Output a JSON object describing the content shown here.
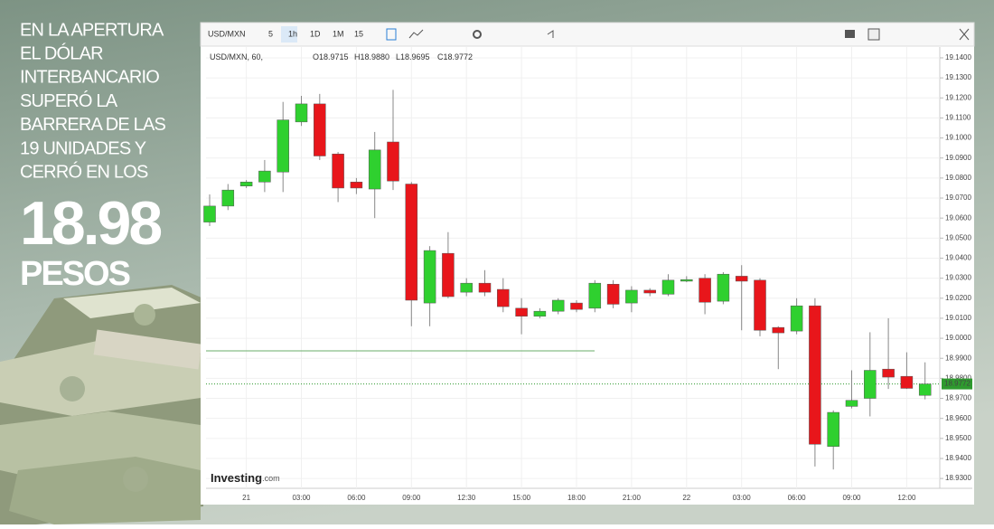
{
  "headline": {
    "lines": [
      "EN LA APERTURA",
      "EL DÓLAR",
      "INTERBANCARIO",
      "SUPERÓ LA",
      "BARRERA DE LAS",
      "19 UNIDADES Y",
      "CERRÓ EN LOS"
    ],
    "big_number": "18.98",
    "unit": "PESOS"
  },
  "toolbar": {
    "symbol": "USD/MXN",
    "intervals": [
      "5",
      "1h",
      "1D",
      "1M",
      "15"
    ]
  },
  "header": {
    "symbol": "USD/MXN, 60,",
    "ohlc": [
      {
        "label": "O",
        "value": "18.9715"
      },
      {
        "label": "H",
        "value": "18.9880"
      },
      {
        "label": "L",
        "value": "18.9695"
      },
      {
        "label": "C",
        "value": "18.9772"
      }
    ]
  },
  "watermark": {
    "brand": "Investing",
    "suffix": ".com"
  },
  "chart_data": {
    "type": "candlestick",
    "categories": [
      null,
      null,
      "21",
      null,
      null,
      "03:00",
      null,
      null,
      "06:00",
      null,
      null,
      "09:00",
      null,
      null,
      "12:30",
      null,
      null,
      "15:00",
      null,
      null,
      "18:00",
      null,
      null,
      "21:00",
      null,
      null,
      "22",
      null,
      null,
      "03:00",
      null,
      null,
      "06:00",
      null,
      null,
      "09:00",
      null,
      null,
      "12:00",
      null
    ],
    "open": [
      19.058,
      19.066,
      19.076,
      19.078,
      19.083,
      19.108,
      19.117,
      19.092,
      19.078,
      19.0745,
      19.098,
      19.077,
      19.0176,
      19.0424,
      19.023,
      19.0275,
      19.0244,
      19.015,
      19.011,
      19.0135,
      19.0176,
      19.015,
      19.027,
      19.0176,
      19.024,
      19.022,
      19.0285,
      19.03,
      19.0185,
      19.031,
      19.029,
      19.0054,
      19.0036,
      19.0162,
      18.946,
      18.966,
      18.97,
      18.9846,
      18.981,
      18.9715
    ],
    "high": [
      19.0718,
      19.077,
      19.079,
      19.089,
      19.118,
      19.121,
      19.122,
      19.093,
      19.08,
      19.103,
      19.124,
      19.078,
      19.046,
      19.053,
      19.03,
      19.034,
      19.03,
      19.02,
      19.015,
      19.02,
      19.019,
      19.029,
      19.029,
      19.026,
      19.025,
      19.032,
      19.031,
      19.032,
      19.033,
      19.0365,
      19.03,
      19.006,
      19.02,
      19.02,
      18.964,
      18.984,
      19.003,
      19.01,
      18.993,
      18.988
    ],
    "low": [
      19.056,
      19.064,
      19.075,
      19.073,
      19.073,
      19.106,
      19.089,
      19.068,
      19.072,
      19.06,
      19.074,
      19.006,
      19.006,
      19.02,
      19.021,
      19.021,
      19.013,
      19.002,
      19.01,
      19.012,
      19.013,
      19.013,
      19.015,
      19.013,
      19.021,
      19.021,
      19.028,
      19.012,
      19.017,
      19.004,
      19.001,
      18.9846,
      19.002,
      18.936,
      18.9345,
      18.965,
      18.961,
      18.9747,
      18.9747,
      18.9695
    ],
    "close": [
      19.066,
      19.074,
      19.078,
      19.0835,
      19.109,
      19.117,
      19.091,
      19.075,
      19.075,
      19.094,
      19.0785,
      19.019,
      19.0438,
      19.0208,
      19.0275,
      19.023,
      19.0158,
      19.011,
      19.0135,
      19.019,
      19.0144,
      19.0275,
      19.017,
      19.024,
      19.0226,
      19.029,
      19.0293,
      19.018,
      19.032,
      19.0285,
      19.004,
      19.0027,
      19.0162,
      18.9471,
      18.963,
      18.969,
      18.984,
      18.9806,
      18.975,
      18.9772
    ],
    "up_color": "#2fd02f",
    "down_color": "#e8161b",
    "ylim": [
      18.926,
      19.1454
    ],
    "yticks": [
      {
        "value": 19.14,
        "label": "19.1400"
      },
      {
        "value": 19.13,
        "label": "19.1300"
      },
      {
        "value": 19.12,
        "label": "19.1200"
      },
      {
        "value": 19.11,
        "label": "19.1100"
      },
      {
        "value": 19.1,
        "label": "19.1000"
      },
      {
        "value": 19.09,
        "label": "19.0900"
      },
      {
        "value": 19.08,
        "label": "19.0800"
      },
      {
        "value": 19.07,
        "label": "19.0700"
      },
      {
        "value": 19.06,
        "label": "19.0600"
      },
      {
        "value": 19.05,
        "label": "19.0500"
      },
      {
        "value": 19.04,
        "label": "19.0400"
      },
      {
        "value": 19.03,
        "label": "19.0300"
      },
      {
        "value": 19.02,
        "label": "19.0200"
      },
      {
        "value": 19.01,
        "label": "19.0100"
      },
      {
        "value": 19.0,
        "label": "19.0000"
      },
      {
        "value": 18.99,
        "label": "18.9900"
      },
      {
        "value": 18.98,
        "label": "18.9800"
      },
      {
        "value": 18.97,
        "label": "18.9700"
      },
      {
        "value": 18.96,
        "label": "18.9600"
      },
      {
        "value": 18.95,
        "label": "18.9500"
      },
      {
        "value": 18.94,
        "label": "18.9400"
      },
      {
        "value": 18.93,
        "label": "18.9300"
      }
    ],
    "price_line": {
      "value": 18.9772,
      "label": "18.9772",
      "color": "#2e9a2e"
    },
    "reference_line": {
      "value": 18.9937,
      "color": "#6aae6a"
    }
  }
}
